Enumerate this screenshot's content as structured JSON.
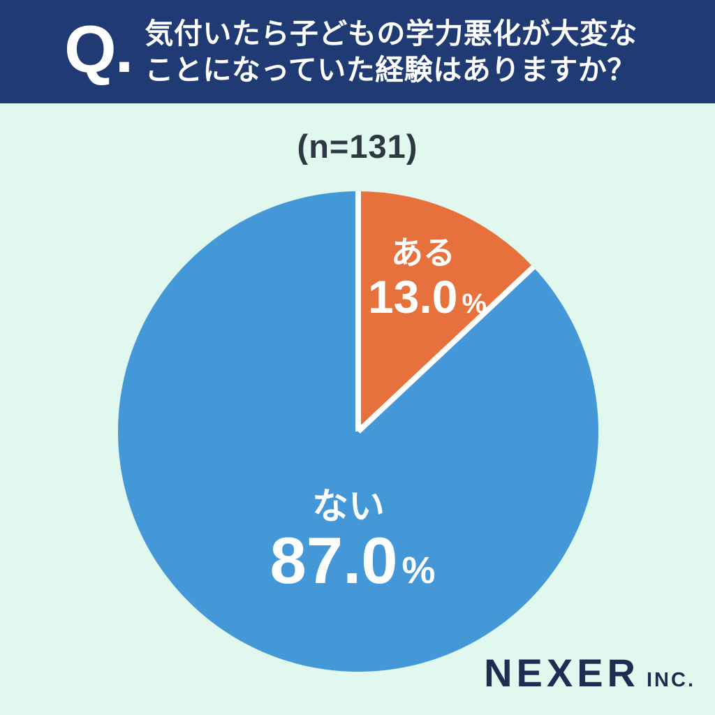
{
  "header": {
    "q_label": "Q.",
    "question_line1": "気付いたら子どもの学力悪化が大変な",
    "question_line2": "ことになっていた経験はありますか？"
  },
  "sample_label": "(n=131)",
  "chart_data": {
    "type": "pie",
    "title": "気付いたら子どもの学力悪化が大変なことになっていた経験はありますか？",
    "n": 131,
    "start_angle_deg": 0,
    "direction": "clockwise",
    "percent_suffix": "%",
    "slices": [
      {
        "label": "ある",
        "value": 13.0,
        "value_label": "13.0",
        "color": "#e7713c"
      },
      {
        "label": "ない",
        "value": 87.0,
        "value_label": "87.0",
        "color": "#4498d8"
      }
    ],
    "separator_color": "#ffffff",
    "legend": "none"
  },
  "footer": {
    "brand": "NEXER",
    "brand_suffix": "INC."
  },
  "colors": {
    "header_bg": "#203a73",
    "page_bg": "#e1f8ef",
    "text_dark": "#2d3842",
    "brand_navy": "#1c2e52",
    "label_white": "#ffffff"
  }
}
